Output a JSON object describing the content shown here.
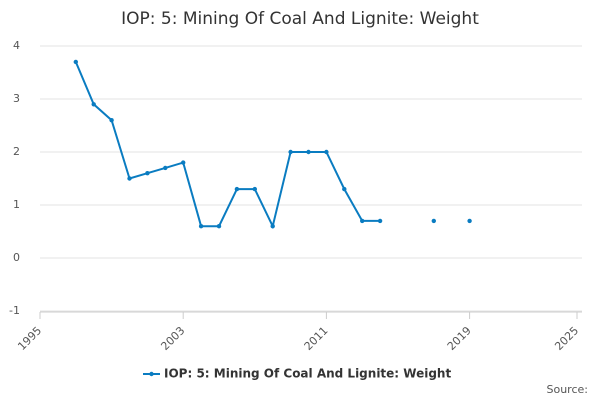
{
  "chart_data": {
    "type": "line",
    "title": "IOP: 5: Mining Of Coal And Lignite: Weight",
    "x": [
      1997,
      1998,
      1999,
      2000,
      2001,
      2002,
      2003,
      2004,
      2005,
      2006,
      2007,
      2008,
      2009,
      2010,
      2011,
      2012,
      2013,
      2014,
      2015,
      2016,
      2017,
      2018,
      2019
    ],
    "series": [
      {
        "name": "IOP: 5: Mining Of Coal And Lignite: Weight",
        "color": "#0a7cc1",
        "values": [
          3.7,
          2.9,
          2.6,
          1.5,
          1.6,
          1.7,
          1.8,
          0.6,
          0.6,
          1.3,
          1.3,
          0.6,
          2.0,
          2.0,
          2.0,
          1.3,
          0.7,
          0.7,
          null,
          null,
          0.7,
          null,
          0.7
        ]
      }
    ],
    "xlim": [
      1995,
      2025
    ],
    "xticks": [
      1995,
      2003,
      2011,
      2019,
      2025
    ],
    "ylim": [
      -1,
      4
    ],
    "yticks": [
      -1,
      0,
      1,
      2,
      3,
      4
    ],
    "grid": true,
    "source": "Source:"
  }
}
